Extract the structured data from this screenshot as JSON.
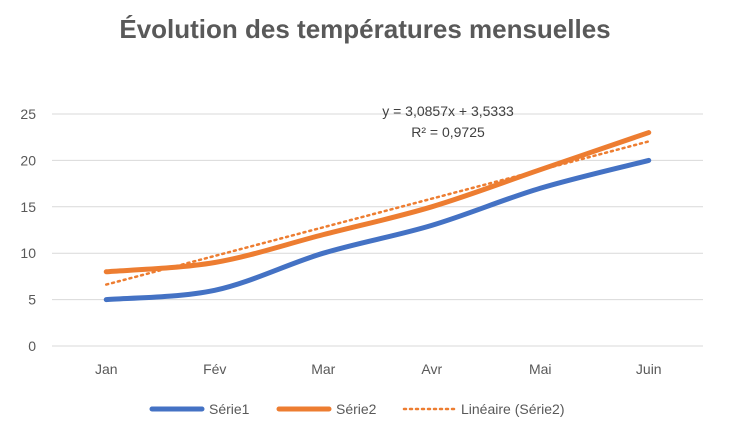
{
  "chart_data": {
    "type": "line",
    "title": "Évolution des températures mensuelles",
    "categories": [
      "Jan",
      "Fév",
      "Mar",
      "Avr",
      "Mai",
      "Juin"
    ],
    "ylim": [
      0,
      25
    ],
    "yticks": [
      "0",
      "5",
      "10",
      "15",
      "20",
      "25"
    ],
    "grid": true,
    "smooth": true,
    "legend_position": "bottom",
    "series": [
      {
        "name": "Série1",
        "values": [
          5,
          6,
          10,
          13,
          17,
          20
        ],
        "color": "#4472c4"
      },
      {
        "name": "Série2",
        "values": [
          8,
          9,
          12,
          15,
          19,
          23
        ],
        "color": "#ed7d31"
      }
    ],
    "trendline": {
      "name": "Linéaire (Série2)",
      "of_series": "Série2",
      "slope": 3.0857,
      "intercept": 3.5333,
      "color": "#ed7d31",
      "equation_label": "y = 3,0857x + 3,5333",
      "r2_label": "R² = 0,9725"
    }
  }
}
